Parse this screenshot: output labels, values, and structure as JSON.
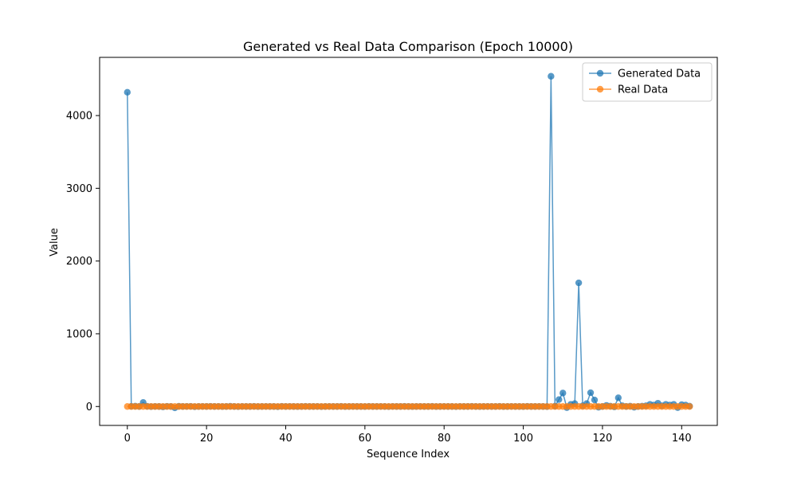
{
  "chart_data": {
    "type": "line",
    "title": "Generated vs Real Data Comparison (Epoch 10000)",
    "xlabel": "Sequence Index",
    "ylabel": "Value",
    "xlim": [
      -7,
      149
    ],
    "ylim": [
      -260,
      4800
    ],
    "xticks": [
      0,
      20,
      40,
      60,
      80,
      100,
      120,
      140
    ],
    "yticks": [
      0,
      1000,
      2000,
      3000,
      4000
    ],
    "grid": false,
    "legend_position": "top-right",
    "series": [
      {
        "name": "Generated Data",
        "color": "#1f77b4",
        "marker": "circle",
        "x_start": 0,
        "values": [
          4320,
          2,
          5,
          0,
          55,
          3,
          -2,
          1,
          0,
          -5,
          2,
          0,
          -18,
          3,
          0,
          1,
          2,
          -3,
          0,
          1,
          0,
          2,
          0,
          1,
          -1,
          0,
          3,
          0,
          -2,
          1,
          0,
          0,
          2,
          -1,
          0,
          1,
          0,
          0,
          -3,
          2,
          0,
          1,
          0,
          -1,
          0,
          2,
          0,
          0,
          1,
          -2,
          0,
          1,
          0,
          0,
          2,
          -1,
          0,
          1,
          0,
          0,
          -1,
          2,
          0,
          0,
          1,
          0,
          -2,
          1,
          0,
          0,
          2,
          0,
          -1,
          0,
          1,
          0,
          0,
          2,
          -1,
          0,
          1,
          0,
          0,
          -2,
          1,
          0,
          0,
          2,
          0,
          -1,
          0,
          1,
          0,
          0,
          2,
          -1,
          0,
          1,
          0,
          0,
          -1,
          2,
          0,
          0,
          1,
          0,
          -2,
          4540,
          5,
          95,
          185,
          -15,
          30,
          40,
          1700,
          10,
          40,
          190,
          90,
          -10,
          0,
          15,
          5,
          -5,
          120,
          10,
          0,
          5,
          -10,
          0,
          5,
          10,
          30,
          20,
          45,
          10,
          30,
          20,
          30,
          -15,
          25,
          20,
          5
        ]
      },
      {
        "name": "Real Data",
        "color": "#ff7f0e",
        "marker": "circle",
        "x_start": 0,
        "values": [
          0,
          0,
          0,
          0,
          0,
          0,
          0,
          0,
          0,
          0,
          0,
          0,
          0,
          0,
          0,
          0,
          0,
          0,
          0,
          0,
          0,
          0,
          0,
          0,
          0,
          0,
          0,
          0,
          0,
          0,
          0,
          0,
          0,
          0,
          0,
          0,
          0,
          0,
          0,
          0,
          0,
          0,
          0,
          0,
          0,
          0,
          0,
          0,
          0,
          0,
          0,
          0,
          0,
          0,
          0,
          0,
          0,
          0,
          0,
          0,
          0,
          0,
          0,
          0,
          0,
          0,
          0,
          0,
          0,
          0,
          0,
          0,
          0,
          0,
          0,
          0,
          0,
          0,
          0,
          0,
          0,
          0,
          0,
          0,
          0,
          0,
          0,
          0,
          0,
          0,
          0,
          0,
          0,
          0,
          0,
          0,
          0,
          0,
          0,
          0,
          0,
          0,
          0,
          0,
          0,
          0,
          0,
          0,
          0,
          0,
          0,
          0,
          0,
          0,
          0,
          0,
          0,
          0,
          0,
          0,
          0,
          0,
          0,
          0,
          0,
          0,
          0,
          0,
          0,
          0,
          0,
          0,
          0,
          0,
          0,
          0,
          0,
          0,
          0,
          0,
          0,
          0,
          0
        ]
      }
    ]
  }
}
